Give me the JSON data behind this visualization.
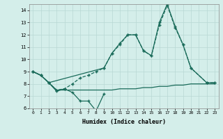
{
  "title": "",
  "xlabel": "Humidex (Indice chaleur)",
  "xlim": [
    -0.5,
    23.5
  ],
  "ylim": [
    6,
    14.5
  ],
  "yticks": [
    6,
    7,
    8,
    9,
    10,
    11,
    12,
    13,
    14
  ],
  "xticks": [
    0,
    1,
    2,
    3,
    4,
    5,
    6,
    7,
    8,
    9,
    10,
    11,
    12,
    13,
    14,
    15,
    16,
    17,
    18,
    19,
    20,
    21,
    22,
    23
  ],
  "bg_color": "#d4eeea",
  "grid_color": "#b8d8d4",
  "line_color": "#1a6b5a",
  "line_min_x": [
    0,
    1,
    2,
    3,
    4,
    5,
    6,
    7,
    8,
    9
  ],
  "line_min_y": [
    9.0,
    8.7,
    8.1,
    7.4,
    7.6,
    7.3,
    6.6,
    6.6,
    5.8,
    7.2
  ],
  "line_flat_x": [
    0,
    1,
    2,
    3,
    4,
    5,
    6,
    7,
    8,
    9,
    10,
    11,
    12,
    13,
    14,
    15,
    16,
    17,
    18,
    19,
    20,
    21,
    22,
    23
  ],
  "line_flat_y": [
    9.0,
    8.7,
    8.1,
    7.5,
    7.5,
    7.5,
    7.5,
    7.5,
    7.5,
    7.5,
    7.5,
    7.6,
    7.6,
    7.6,
    7.7,
    7.7,
    7.8,
    7.8,
    7.9,
    7.9,
    8.0,
    8.0,
    8.0,
    8.0
  ],
  "line_dashed_x": [
    0,
    1,
    2,
    3,
    4,
    5,
    6,
    7,
    8,
    9,
    10,
    11,
    12,
    13,
    14,
    15,
    16,
    17,
    18,
    19,
    20,
    22,
    23
  ],
  "line_dashed_y": [
    9.0,
    8.7,
    8.1,
    7.5,
    7.6,
    8.0,
    8.5,
    8.7,
    9.0,
    9.3,
    10.5,
    11.2,
    12.0,
    12.0,
    10.7,
    10.3,
    12.8,
    14.4,
    12.6,
    11.2,
    9.3,
    8.1,
    8.1
  ],
  "line_solid_x": [
    0,
    1,
    2,
    9,
    10,
    11,
    12,
    13,
    14,
    15,
    16,
    17,
    18,
    19,
    20,
    22,
    23
  ],
  "line_solid_y": [
    9.0,
    8.7,
    8.1,
    9.3,
    10.5,
    11.3,
    12.0,
    12.0,
    10.7,
    10.3,
    13.0,
    14.5,
    12.7,
    11.2,
    9.3,
    8.1,
    8.1
  ]
}
